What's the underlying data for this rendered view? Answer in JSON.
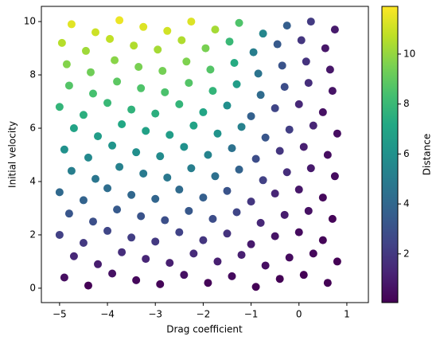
{
  "chart_data": {
    "type": "scatter",
    "x_label": "Drag coefficient",
    "y_label": "Initial velocity",
    "colorbar_label": "Distance",
    "colormap": "viridis",
    "xlim": [
      -5.38,
      1.45
    ],
    "ylim": [
      -0.54,
      10.57
    ],
    "clim": [
      0.05,
      11.91
    ],
    "xticks": [
      {
        "value": -5,
        "label": "−5"
      },
      {
        "value": -4,
        "label": "−4"
      },
      {
        "value": -3,
        "label": "−3"
      },
      {
        "value": -2,
        "label": "−2"
      },
      {
        "value": -1,
        "label": "−1"
      },
      0,
      1
    ],
    "yticks": [
      0,
      2,
      4,
      6,
      8,
      10
    ],
    "cticks": [
      2,
      4,
      6,
      8,
      10
    ],
    "x": [
      -4.9,
      -4.4,
      -3.9,
      -3.4,
      -2.9,
      -2.4,
      -1.9,
      -1.4,
      -0.9,
      -0.4,
      0.1,
      0.6,
      -4.7,
      -4.2,
      -3.7,
      -3.2,
      -2.7,
      -2.2,
      -1.7,
      -1.2,
      -0.7,
      -0.2,
      0.3,
      0.8,
      -5.0,
      -4.5,
      -4.0,
      -3.5,
      -3.0,
      -2.5,
      -2.0,
      -1.5,
      -1.0,
      -0.5,
      0.0,
      0.5,
      -4.8,
      -4.3,
      -3.8,
      -3.3,
      -2.8,
      -2.3,
      -1.8,
      -1.3,
      -0.8,
      -0.3,
      0.2,
      0.7,
      -5.0,
      -4.5,
      -4.0,
      -3.5,
      -3.0,
      -2.5,
      -2.0,
      -1.5,
      -1.0,
      -0.5,
      0.0,
      0.5,
      -4.75,
      -4.25,
      -3.75,
      -3.25,
      -2.75,
      -2.25,
      -1.75,
      -1.25,
      -0.75,
      -0.25,
      0.25,
      0.75,
      -4.9,
      -4.4,
      -3.9,
      -3.4,
      -2.9,
      -2.4,
      -1.9,
      -1.4,
      -0.9,
      -0.4,
      0.1,
      0.6,
      -4.7,
      -4.2,
      -3.7,
      -3.2,
      -2.7,
      -2.2,
      -1.7,
      -1.2,
      -0.7,
      -0.2,
      0.3,
      0.8,
      -5.0,
      -4.5,
      -4.0,
      -3.5,
      -3.0,
      -2.5,
      -2.0,
      -1.5,
      -1.0,
      -0.5,
      0.0,
      0.5,
      -4.8,
      -4.3,
      -3.8,
      -3.3,
      -2.8,
      -2.3,
      -1.8,
      -1.3,
      -0.8,
      -0.3,
      0.2,
      0.7,
      -4.85,
      -4.35,
      -3.85,
      -3.35,
      -2.85,
      -2.35,
      -1.85,
      -1.35,
      -0.85,
      -0.35,
      0.15,
      0.65,
      -4.95,
      -4.45,
      -3.95,
      -3.45,
      -2.95,
      -2.45,
      -1.95,
      -1.45,
      -0.95,
      -0.45,
      0.05,
      0.55,
      -4.75,
      -4.25,
      -3.75,
      -3.25,
      -2.75,
      -2.25,
      -1.75,
      -1.25,
      -0.75,
      -0.25,
      0.25,
      0.75
    ],
    "y": [
      0.4,
      0.1,
      0.55,
      0.3,
      0.15,
      0.5,
      0.2,
      0.45,
      0.05,
      0.35,
      0.5,
      0.2,
      1.2,
      0.9,
      1.35,
      1.1,
      0.95,
      1.3,
      1.0,
      1.25,
      0.85,
      1.15,
      1.3,
      1.0,
      2.0,
      1.7,
      2.15,
      1.9,
      1.75,
      2.1,
      1.8,
      2.05,
      1.65,
      1.95,
      2.1,
      1.8,
      2.8,
      2.5,
      2.95,
      2.7,
      2.55,
      2.9,
      2.6,
      2.85,
      2.45,
      2.75,
      2.9,
      2.6,
      3.6,
      3.3,
      3.75,
      3.5,
      3.35,
      3.7,
      3.4,
      3.65,
      3.25,
      3.55,
      3.7,
      3.4,
      4.4,
      4.1,
      4.55,
      4.3,
      4.15,
      4.5,
      4.2,
      4.45,
      4.05,
      4.35,
      4.5,
      4.2,
      5.2,
      4.9,
      5.35,
      5.1,
      4.95,
      5.3,
      5.0,
      5.25,
      4.85,
      5.15,
      5.3,
      5.0,
      6.0,
      5.7,
      6.15,
      5.9,
      5.75,
      6.1,
      5.8,
      6.05,
      5.65,
      5.95,
      6.1,
      5.8,
      6.8,
      6.5,
      6.95,
      6.7,
      6.55,
      6.9,
      6.6,
      6.85,
      6.45,
      6.75,
      6.9,
      6.6,
      7.6,
      7.3,
      7.75,
      7.5,
      7.35,
      7.7,
      7.4,
      7.65,
      7.25,
      7.55,
      7.7,
      7.4,
      8.4,
      8.1,
      8.55,
      8.3,
      8.15,
      8.5,
      8.2,
      8.45,
      8.05,
      8.35,
      8.5,
      8.2,
      9.2,
      8.9,
      9.35,
      9.1,
      8.95,
      9.3,
      9.0,
      9.25,
      8.85,
      9.15,
      9.3,
      9.0,
      9.9,
      9.6,
      10.05,
      9.8,
      9.65,
      10.0,
      9.7,
      9.95,
      9.55,
      9.85,
      10.0,
      9.7
    ],
    "c": [
      0.5,
      0.1,
      0.6,
      0.3,
      0.2,
      0.6,
      0.2,
      0.4,
      0.1,
      0.1,
      0.1,
      0.1,
      1.4,
      1.0,
      1.6,
      1.3,
      1.1,
      1.5,
      1.1,
      1.1,
      0.5,
      0.4,
      0.3,
      0.1,
      2.3,
      2.0,
      2.5,
      2.2,
      2.0,
      2.4,
      1.9,
      1.8,
      0.9,
      0.7,
      0.4,
      0.2,
      3.2,
      2.9,
      3.4,
      3.1,
      2.9,
      3.3,
      2.8,
      2.5,
      1.4,
      1.0,
      0.6,
      0.2,
      4.1,
      3.8,
      4.3,
      4.0,
      3.9,
      4.2,
      3.6,
      3.1,
      1.9,
      1.3,
      0.8,
      0.3,
      5.1,
      4.7,
      5.2,
      4.9,
      4.8,
      5.1,
      4.4,
      3.8,
      2.3,
      1.6,
      0.9,
      0.4,
      6.0,
      5.6,
      6.2,
      5.9,
      5.7,
      6.0,
      5.3,
      4.5,
      2.8,
      1.9,
      1.1,
      0.5,
      6.9,
      6.6,
      7.1,
      6.8,
      6.6,
      6.9,
      6.1,
      5.2,
      3.2,
      2.2,
      1.3,
      0.5,
      7.8,
      7.5,
      8.0,
      7.7,
      7.5,
      7.8,
      7.0,
      5.9,
      3.7,
      2.5,
      1.4,
      0.6,
      8.7,
      8.4,
      8.9,
      8.6,
      8.5,
      8.7,
      7.8,
      6.6,
      4.2,
      2.8,
      1.6,
      0.7,
      9.7,
      9.3,
      9.8,
      9.5,
      9.4,
      9.6,
      8.7,
      7.3,
      4.6,
      3.1,
      1.8,
      0.8,
      10.6,
      10.2,
      10.8,
      10.5,
      10.3,
      10.5,
      9.5,
      8.0,
      5.1,
      3.4,
      1.9,
      0.8,
      11.4,
      11.0,
      11.6,
      11.3,
      11.1,
      11.3,
      10.3,
      8.6,
      5.5,
      3.6,
      2.1,
      0.9
    ]
  }
}
